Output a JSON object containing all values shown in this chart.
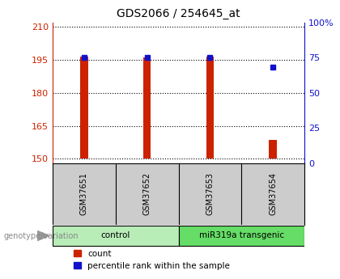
{
  "title": "GDS2066 / 254645_at",
  "samples": [
    "GSM37651",
    "GSM37652",
    "GSM37653",
    "GSM37654"
  ],
  "bar_bottoms": [
    150,
    150,
    150,
    150
  ],
  "bar_tops": [
    196.5,
    196.0,
    196.5,
    158.5
  ],
  "percentile_ranks": [
    75,
    75,
    75,
    68
  ],
  "groups": [
    "control",
    "control",
    "miR319a transgenic",
    "miR319a transgenic"
  ],
  "bar_color": "#cc2200",
  "percentile_color": "#1111cc",
  "ylim_left": [
    148,
    212
  ],
  "ylim_right": [
    0,
    100
  ],
  "yticks_left": [
    150,
    165,
    180,
    195,
    210
  ],
  "yticks_right": [
    0,
    25,
    50,
    75,
    100
  ],
  "ytick_labels_right": [
    "0",
    "25",
    "50",
    "75",
    "100%"
  ],
  "ylabel_left_color": "#cc2200",
  "ylabel_right_color": "#1111cc",
  "background_color": "#ffffff",
  "sample_bg_color": "#cccccc",
  "group_colors": {
    "control": "#b8edb8",
    "miR319a transgenic": "#66dd66"
  },
  "legend_count_label": "count",
  "legend_percentile_label": "percentile rank within the sample",
  "genotype_label": "genotype/variation",
  "group_unique": [
    "control",
    "miR319a transgenic"
  ],
  "group_sample_ranges": [
    [
      0,
      1
    ],
    [
      2,
      3
    ]
  ]
}
